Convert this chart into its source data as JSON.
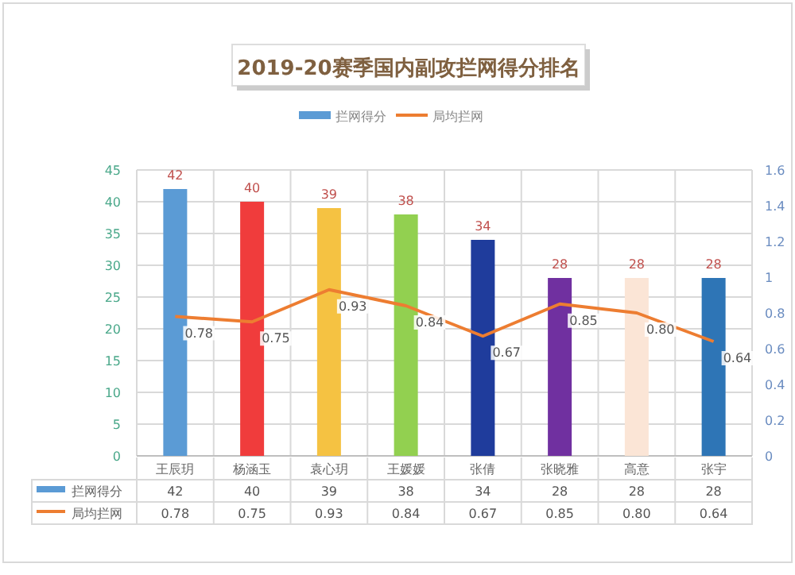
{
  "chart_data": {
    "type": "bar",
    "title": "2019-20赛季国内副攻拦网得分排名",
    "categories": [
      "王辰玥",
      "杨涵玉",
      "袁心玥",
      "王媛媛",
      "张倩",
      "张晓雅",
      "高意",
      "张宇"
    ],
    "series": [
      {
        "name": "拦网得分",
        "color": "#5b9bd5",
        "colors": [
          "#5b9bd5",
          "#f03c3c",
          "#f5c242",
          "#92d050",
          "#1f3c9c",
          "#7030a0",
          "#fbe5d6",
          "#2e75b6"
        ],
        "values": [
          42,
          40,
          39,
          38,
          34,
          28,
          28,
          28
        ],
        "value_labels": [
          "42",
          "40",
          "39",
          "38",
          "34",
          "28",
          "28",
          "28"
        ]
      },
      {
        "name": "局均拦网",
        "type": "line",
        "axis": "y2",
        "color": "#ed7d31",
        "values": [
          0.78,
          0.75,
          0.93,
          0.84,
          0.67,
          0.85,
          0.8,
          0.64
        ],
        "value_labels": [
          "0.78",
          "0.75",
          "0.93",
          "0.84",
          "0.67",
          "0.85",
          "0.80",
          "0.64"
        ]
      }
    ],
    "ylim": [
      0,
      45
    ],
    "yticks": [
      0,
      5,
      10,
      15,
      20,
      25,
      30,
      35,
      40,
      45
    ],
    "y2lim": [
      0,
      1.6
    ],
    "y2ticks": [
      0,
      0.2,
      0.4,
      0.6,
      0.8,
      1,
      1.2,
      1.4,
      1.6
    ],
    "data_labels": true,
    "grid": true,
    "legend": "top"
  }
}
